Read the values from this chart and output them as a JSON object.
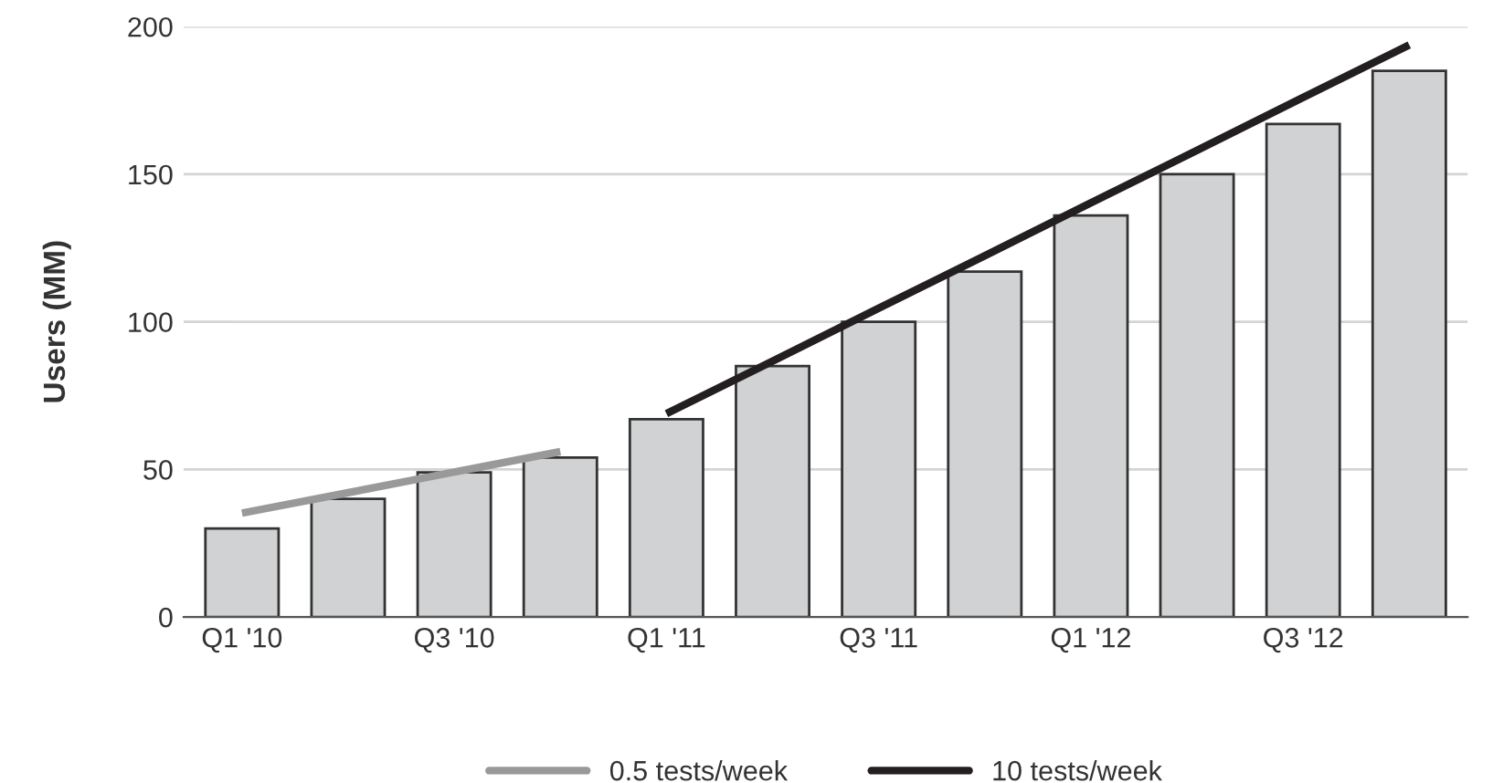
{
  "chart_data": {
    "type": "bar",
    "ylabel": "Users (MM)",
    "categories": [
      "Q1 '10",
      null,
      "Q3 '10",
      null,
      "Q1 '11",
      null,
      "Q3 '11",
      null,
      "Q1 '12",
      null,
      "Q3 '12",
      null
    ],
    "series": [
      {
        "color": "#d1d2d4",
        "values": [
          30,
          40,
          49,
          54,
          67,
          85,
          100,
          117,
          136,
          150,
          167,
          185
        ]
      },
      {
        "type": "line",
        "name": "0.5 tests/week",
        "color": "#999999",
        "values": [
          35.2,
          42.1,
          49.1,
          56.0,
          null,
          null,
          null,
          null,
          null,
          null,
          null,
          null
        ]
      },
      {
        "type": "line",
        "name": "10 tests/week",
        "color": "#231f20",
        "values": [
          null,
          null,
          null,
          null,
          68.9,
          86.7,
          104.6,
          122.4,
          140.3,
          158.1,
          176.0,
          193.8
        ]
      }
    ],
    "ylim": [
      0,
      200
    ],
    "yticks": [
      0,
      50,
      100,
      150,
      200
    ],
    "grid": "y",
    "legend": "bottom"
  }
}
